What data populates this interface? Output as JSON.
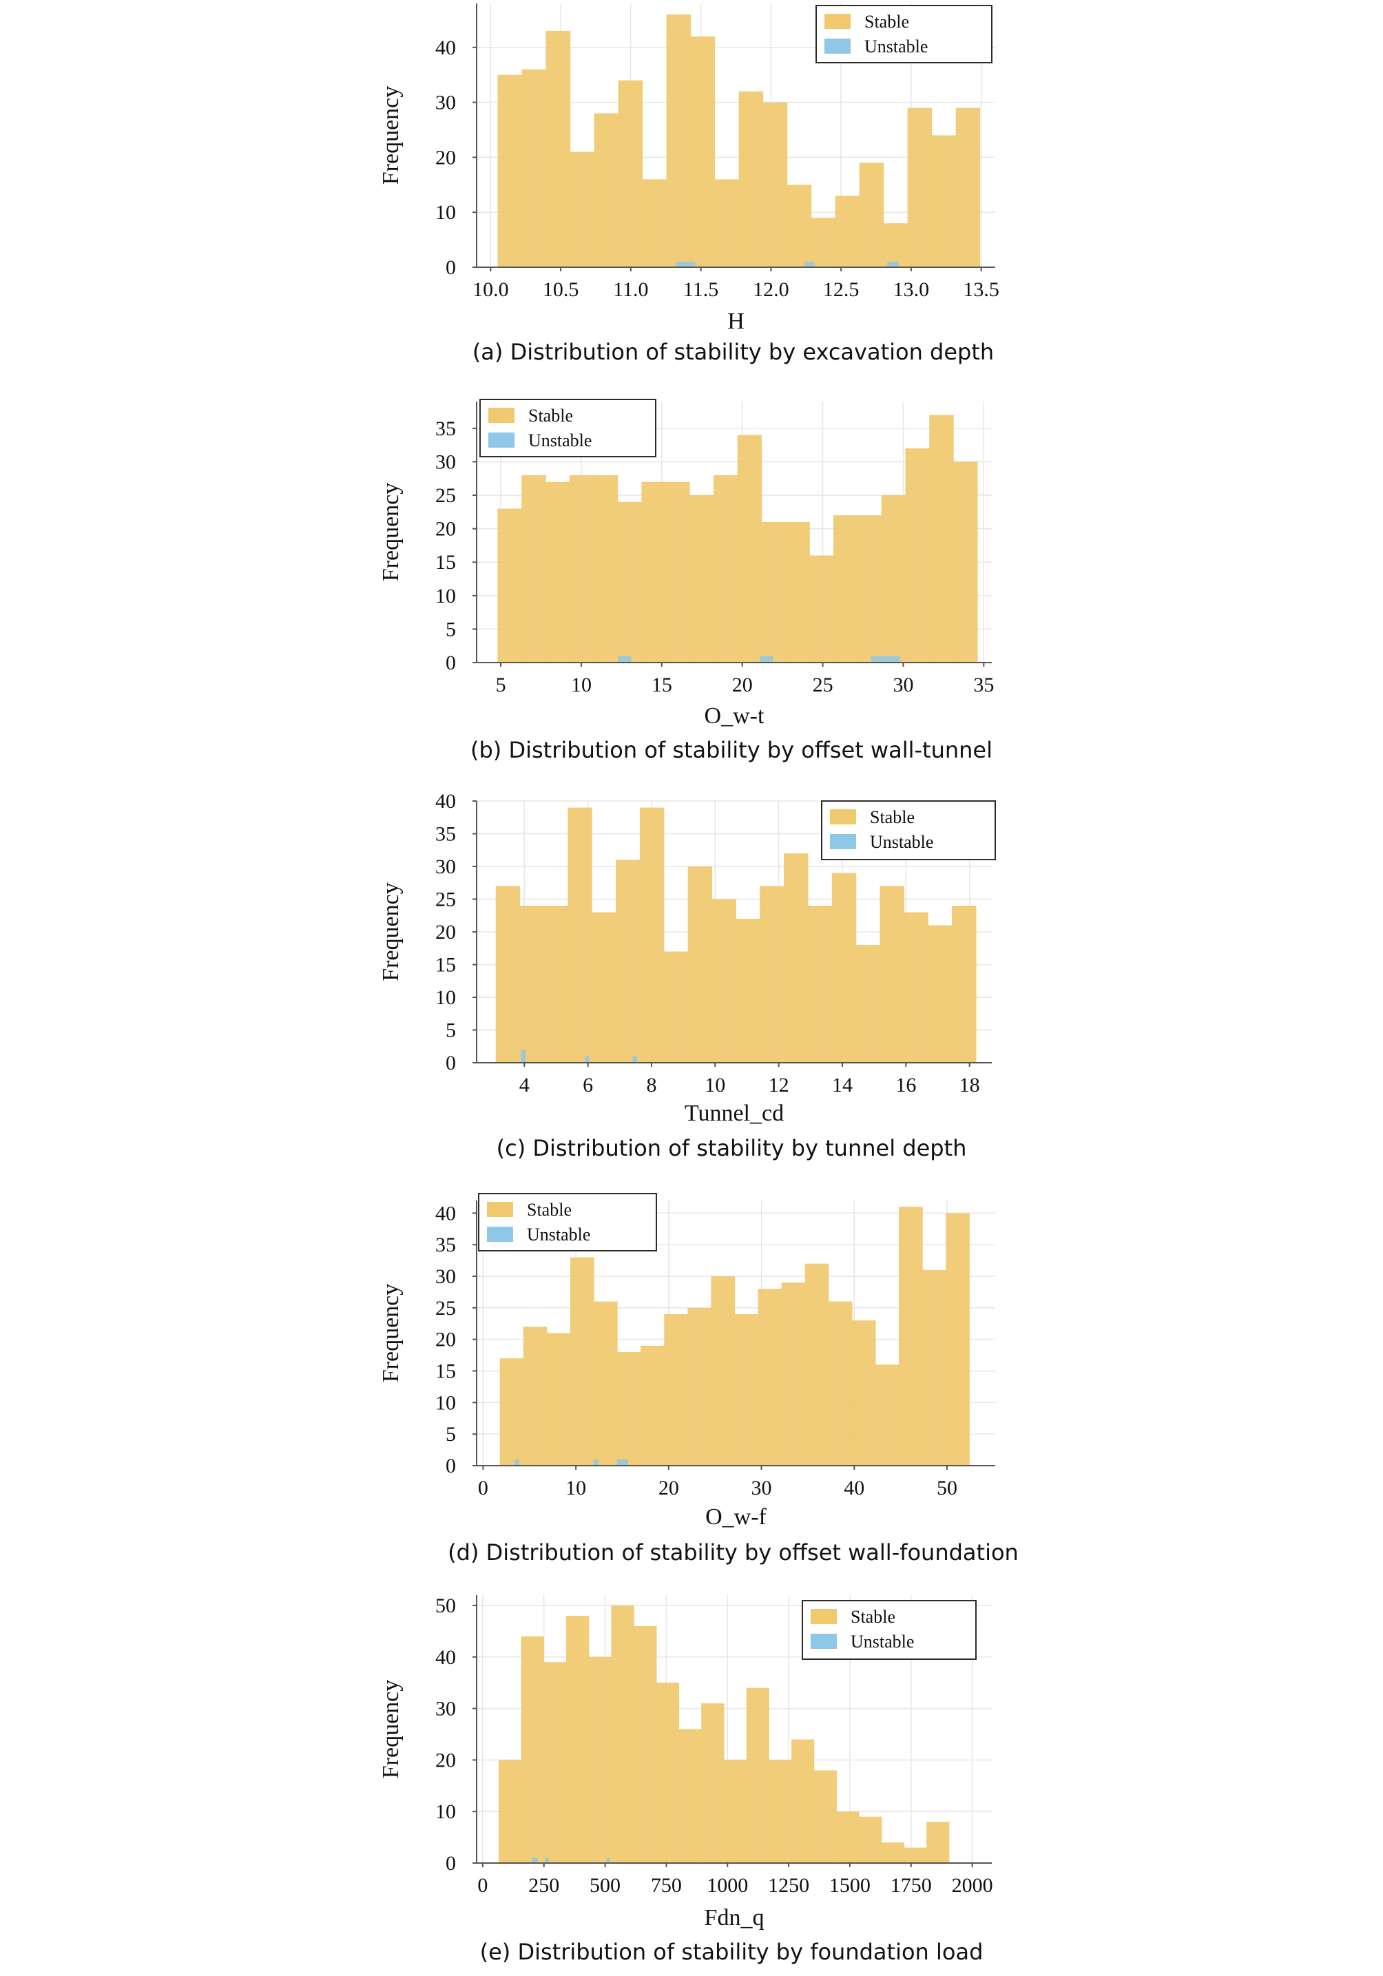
{
  "colors": {
    "stable": "#F0C96E",
    "unstable": "#8FC7E6"
  },
  "chart_data": [
    {
      "type": "bar",
      "title": "",
      "caption": "(a) Distribution of stability by excavation depth",
      "xlabel": "H",
      "ylabel": "Frequency",
      "xlim": [
        9.9,
        13.6
      ],
      "ylim": [
        0,
        48
      ],
      "xticks": [
        10.0,
        10.5,
        11.0,
        11.5,
        12.0,
        12.5,
        13.0,
        13.5
      ],
      "xtick_labels": [
        "10.0",
        "10.5",
        "11.0",
        "11.5",
        "12.0",
        "12.5",
        "13.0",
        "13.5"
      ],
      "yticks": [
        0,
        10,
        20,
        30,
        40
      ],
      "ytick_labels": [
        "0",
        "10",
        "20",
        "30",
        "40"
      ],
      "legend": {
        "position": "top-right",
        "entries": [
          "Stable",
          "Unstable"
        ]
      },
      "series": [
        {
          "name": "Stable",
          "bin_start": 10.05,
          "bin_width": 0.172,
          "values": [
            35,
            36,
            43,
            21,
            28,
            34,
            16,
            46,
            42,
            16,
            32,
            30,
            15,
            9,
            13,
            19,
            8,
            29,
            24,
            29
          ]
        },
        {
          "name": "Unstable",
          "bars": [
            {
              "x0": 11.32,
              "x1": 11.46,
              "value": 1
            },
            {
              "x0": 12.24,
              "x1": 12.31,
              "value": 1
            },
            {
              "x0": 12.83,
              "x1": 12.91,
              "value": 1
            }
          ]
        }
      ]
    },
    {
      "type": "bar",
      "title": "",
      "caption": "(b) Distribution of stability by offset wall-tunnel",
      "xlabel": "O_w-t",
      "ylabel": "Frequency",
      "xlim": [
        3.5,
        35.5
      ],
      "ylim": [
        0,
        39
      ],
      "xticks": [
        5,
        10,
        15,
        20,
        25,
        30,
        35
      ],
      "xtick_labels": [
        "5",
        "10",
        "15",
        "20",
        "25",
        "30",
        "35"
      ],
      "yticks": [
        0,
        5,
        10,
        15,
        20,
        25,
        30,
        35
      ],
      "ytick_labels": [
        "0",
        "5",
        "10",
        "15",
        "20",
        "25",
        "30",
        "35"
      ],
      "legend": {
        "position": "top-left",
        "entries": [
          "Stable",
          "Unstable"
        ]
      },
      "series": [
        {
          "name": "Stable",
          "bin_start": 4.8,
          "bin_width": 1.49,
          "values": [
            23,
            28,
            27,
            28,
            28,
            24,
            27,
            27,
            25,
            28,
            34,
            21,
            21,
            16,
            22,
            22,
            25,
            32,
            37,
            30
          ]
        },
        {
          "name": "Unstable",
          "bars": [
            {
              "x0": 12.3,
              "x1": 13.1,
              "value": 1
            },
            {
              "x0": 21.1,
              "x1": 21.9,
              "value": 1
            },
            {
              "x0": 28.0,
              "x1": 29.8,
              "value": 1
            }
          ]
        }
      ]
    },
    {
      "type": "bar",
      "title": "",
      "caption": "(c) Distribution of stability by tunnel depth",
      "xlabel": "Tunnel_cd",
      "ylabel": "Frequency",
      "xlim": [
        2.5,
        18.7
      ],
      "ylim": [
        0,
        40
      ],
      "xticks": [
        4,
        6,
        8,
        10,
        12,
        14,
        16,
        18
      ],
      "xtick_labels": [
        "4",
        "6",
        "8",
        "10",
        "12",
        "14",
        "16",
        "18"
      ],
      "yticks": [
        0,
        5,
        10,
        15,
        20,
        25,
        30,
        35,
        40
      ],
      "ytick_labels": [
        "0",
        "5",
        "10",
        "15",
        "20",
        "25",
        "30",
        "35",
        "40"
      ],
      "legend": {
        "position": "top-right",
        "entries": [
          "Stable",
          "Unstable"
        ]
      },
      "series": [
        {
          "name": "Stable",
          "bin_start": 3.1,
          "bin_width": 0.755,
          "values": [
            27,
            24,
            24,
            39,
            23,
            31,
            39,
            17,
            30,
            25,
            22,
            27,
            32,
            24,
            29,
            18,
            27,
            23,
            21,
            24
          ]
        },
        {
          "name": "Unstable",
          "bars": [
            {
              "x0": 3.9,
              "x1": 4.05,
              "value": 2
            },
            {
              "x0": 5.9,
              "x1": 6.05,
              "value": 1
            },
            {
              "x0": 7.4,
              "x1": 7.55,
              "value": 1
            }
          ]
        }
      ]
    },
    {
      "type": "bar",
      "title": "",
      "caption": "(d) Distribution of stability by offset wall-foundation",
      "xlabel": "O_w-f",
      "ylabel": "Frequency",
      "xlim": [
        -0.7,
        55.2
      ],
      "ylim": [
        0,
        42
      ],
      "xticks": [
        0,
        10,
        20,
        30,
        40,
        50
      ],
      "xtick_labels": [
        "0",
        "10",
        "20",
        "30",
        "40",
        "50"
      ],
      "yticks": [
        0,
        5,
        10,
        15,
        20,
        25,
        30,
        35,
        40
      ],
      "ytick_labels": [
        "0",
        "5",
        "10",
        "15",
        "20",
        "25",
        "30",
        "35",
        "40"
      ],
      "legend": {
        "position": "top-left",
        "entries": [
          "Stable",
          "Unstable"
        ]
      },
      "series": [
        {
          "name": "Stable",
          "bin_start": 1.8,
          "bin_width": 2.53,
          "values": [
            17,
            22,
            21,
            33,
            26,
            18,
            19,
            24,
            25,
            30,
            24,
            28,
            29,
            32,
            26,
            23,
            16,
            41,
            31,
            40
          ]
        },
        {
          "name": "Unstable",
          "bars": [
            {
              "x0": 3.4,
              "x1": 3.9,
              "value": 1
            },
            {
              "x0": 11.9,
              "x1": 12.4,
              "value": 1
            },
            {
              "x0": 14.4,
              "x1": 15.6,
              "value": 1
            }
          ]
        }
      ]
    },
    {
      "type": "bar",
      "title": "",
      "caption": "(e) Distribution of stability by foundation load",
      "xlabel": "Fdn_q",
      "ylabel": "Frequency",
      "xlim": [
        -25,
        2080
      ],
      "ylim": [
        0,
        52
      ],
      "xticks": [
        0,
        250,
        500,
        750,
        1000,
        1250,
        1500,
        1750,
        2000
      ],
      "xtick_labels": [
        "0",
        "250",
        "500",
        "750",
        "1000",
        "1250",
        "1500",
        "1750",
        "2000"
      ],
      "yticks": [
        0,
        10,
        20,
        30,
        40,
        50
      ],
      "ytick_labels": [
        "0",
        "10",
        "20",
        "30",
        "40",
        "50"
      ],
      "legend": {
        "position": "top-right",
        "entries": [
          "Stable",
          "Unstable"
        ]
      },
      "series": [
        {
          "name": "Stable",
          "bin_start": 65,
          "bin_width": 92,
          "values": [
            20,
            44,
            39,
            48,
            40,
            50,
            46,
            35,
            26,
            31,
            20,
            34,
            20,
            24,
            18,
            10,
            9,
            4,
            3,
            8
          ]
        },
        {
          "name": "Unstable",
          "bars": [
            {
              "x0": 200,
              "x1": 225,
              "value": 1
            },
            {
              "x0": 255,
              "x1": 270,
              "value": 1
            },
            {
              "x0": 505,
              "x1": 520,
              "value": 1
            }
          ]
        }
      ]
    }
  ]
}
